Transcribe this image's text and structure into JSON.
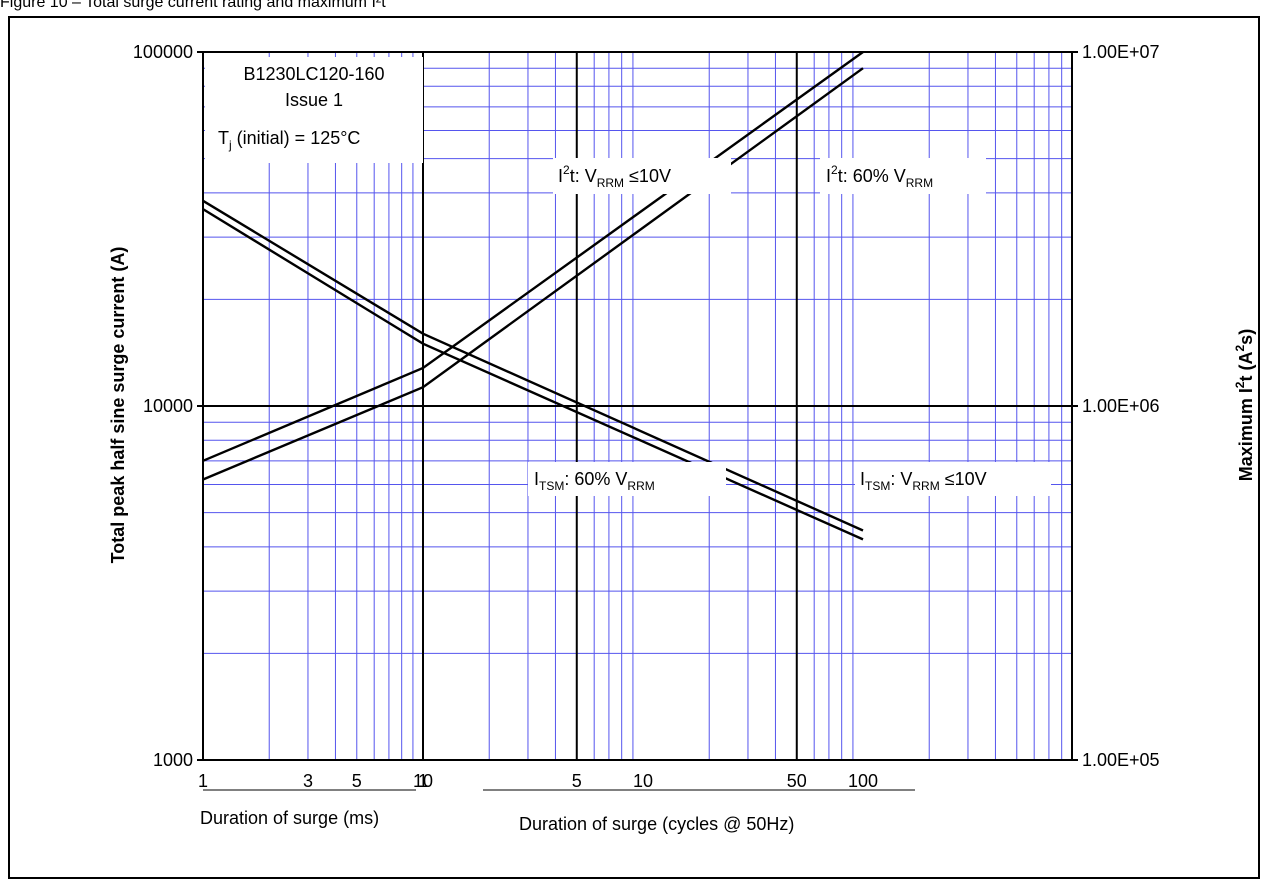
{
  "header": {
    "text": "Figure 10 – Total surge current rating and maximum I²t"
  },
  "chart_data": {
    "type": "line",
    "title": "",
    "info_box": {
      "line1": "B1230LC120-160",
      "line2": "Issue 1",
      "line3_main": "T",
      "line3_sub": "j",
      "line3_rest": " (initial) = 125°C"
    },
    "y_axis": {
      "label_left": "Total peak half sine surge current (A)",
      "scale": "log",
      "ylim": [
        1000,
        100000
      ],
      "ticks": [
        "1000",
        "10000",
        "100000"
      ]
    },
    "y2_axis": {
      "label_main": "Maximum I",
      "label_sup1": "2",
      "label_mid": "t (A",
      "label_sup2": "2",
      "label_end": "s)",
      "scale": "log",
      "ylim": [
        100000,
        10000000
      ],
      "ticks": [
        "1.00E+05",
        "1.00E+06",
        "1.00E+07"
      ]
    },
    "x_axis_ms": {
      "label": "Duration of surge (ms)",
      "scale": "log",
      "xlim": [
        1,
        10
      ],
      "ticks": [
        "1",
        "3",
        "5",
        "10"
      ]
    },
    "x_axis_cycles": {
      "label": "Duration of surge (cycles @ 50Hz)",
      "scale": "log",
      "xlim": [
        1,
        100
      ],
      "ticks": [
        "1",
        "5",
        "10",
        "50",
        "100"
      ]
    },
    "series": [
      {
        "name": "I²t: VRRM ≤10V",
        "axis": "I2t",
        "points_ms": [
          [
            1,
            700000
          ],
          [
            10,
            1280000
          ]
        ],
        "points_cycles": [
          [
            1,
            1280000
          ],
          [
            100,
            10000000
          ]
        ]
      },
      {
        "name": "I²t: 60% VRRM",
        "axis": "I2t",
        "points_ms": [
          [
            1,
            620000
          ],
          [
            10,
            1130000
          ]
        ],
        "points_cycles": [
          [
            1,
            1130000
          ],
          [
            100,
            9000000
          ]
        ]
      },
      {
        "name": "ITSM: VRRM ≤10V",
        "axis": "ITSM",
        "points_ms": [
          [
            1,
            38000
          ],
          [
            10,
            16000
          ]
        ],
        "points_cycles": [
          [
            1,
            16000
          ],
          [
            100,
            4450
          ]
        ]
      },
      {
        "name": "ITSM: 60% VRRM",
        "axis": "ITSM",
        "points_ms": [
          [
            1,
            36000
          ],
          [
            10,
            15000
          ]
        ],
        "points_cycles": [
          [
            1,
            15000
          ],
          [
            100,
            4200
          ]
        ]
      }
    ],
    "annotations": [
      {
        "id": "i2t-low",
        "pre": "I",
        "sup": "2",
        "mid": "t: V",
        "sub": "RRM",
        "post": " ≤10V"
      },
      {
        "id": "i2t-60",
        "pre": "I",
        "sup": "2",
        "mid": "t: 60% V",
        "sub": "RRM",
        "post": ""
      },
      {
        "id": "itsm-60",
        "pre": "I",
        "sub1": "TSM",
        "mid": ": 60% V",
        "sub": "RRM",
        "post": ""
      },
      {
        "id": "itsm-low",
        "pre": "I",
        "sub1": "TSM",
        "mid": ": V",
        "sub": "RRM",
        "post": " ≤10V"
      }
    ],
    "grid": true
  }
}
